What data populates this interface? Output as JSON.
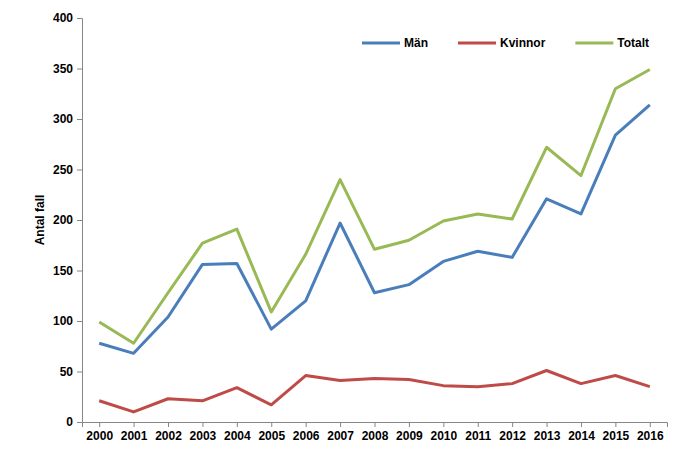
{
  "chart_data": {
    "type": "line",
    "y_label": "Antal fall",
    "categories": [
      "2000",
      "2001",
      "2002",
      "2003",
      "2004",
      "2005",
      "2006",
      "2007",
      "2008",
      "2009",
      "2010",
      "2011",
      "2012",
      "2013",
      "2014",
      "2015",
      "2016"
    ],
    "series": [
      {
        "name": "Män",
        "color": "#4a7ebb",
        "values": [
          78,
          68,
          104,
          156,
          157,
          92,
          120,
          197,
          128,
          136,
          159,
          169,
          163,
          221,
          206,
          284,
          314
        ]
      },
      {
        "name": "Kvinnor",
        "color": "#be4b48",
        "values": [
          21,
          10,
          23,
          21,
          34,
          17,
          46,
          41,
          43,
          42,
          36,
          35,
          38,
          51,
          38,
          46,
          35
        ]
      },
      {
        "name": "Totalt",
        "color": "#98b954",
        "values": [
          99,
          78,
          128,
          177,
          191,
          109,
          166,
          240,
          171,
          180,
          199,
          206,
          201,
          272,
          244,
          330,
          349
        ]
      }
    ],
    "ylim": [
      0,
      400
    ],
    "yticks": [
      0,
      50,
      100,
      150,
      200,
      250,
      300,
      350,
      400
    ],
    "grid": false,
    "legend": "top"
  }
}
